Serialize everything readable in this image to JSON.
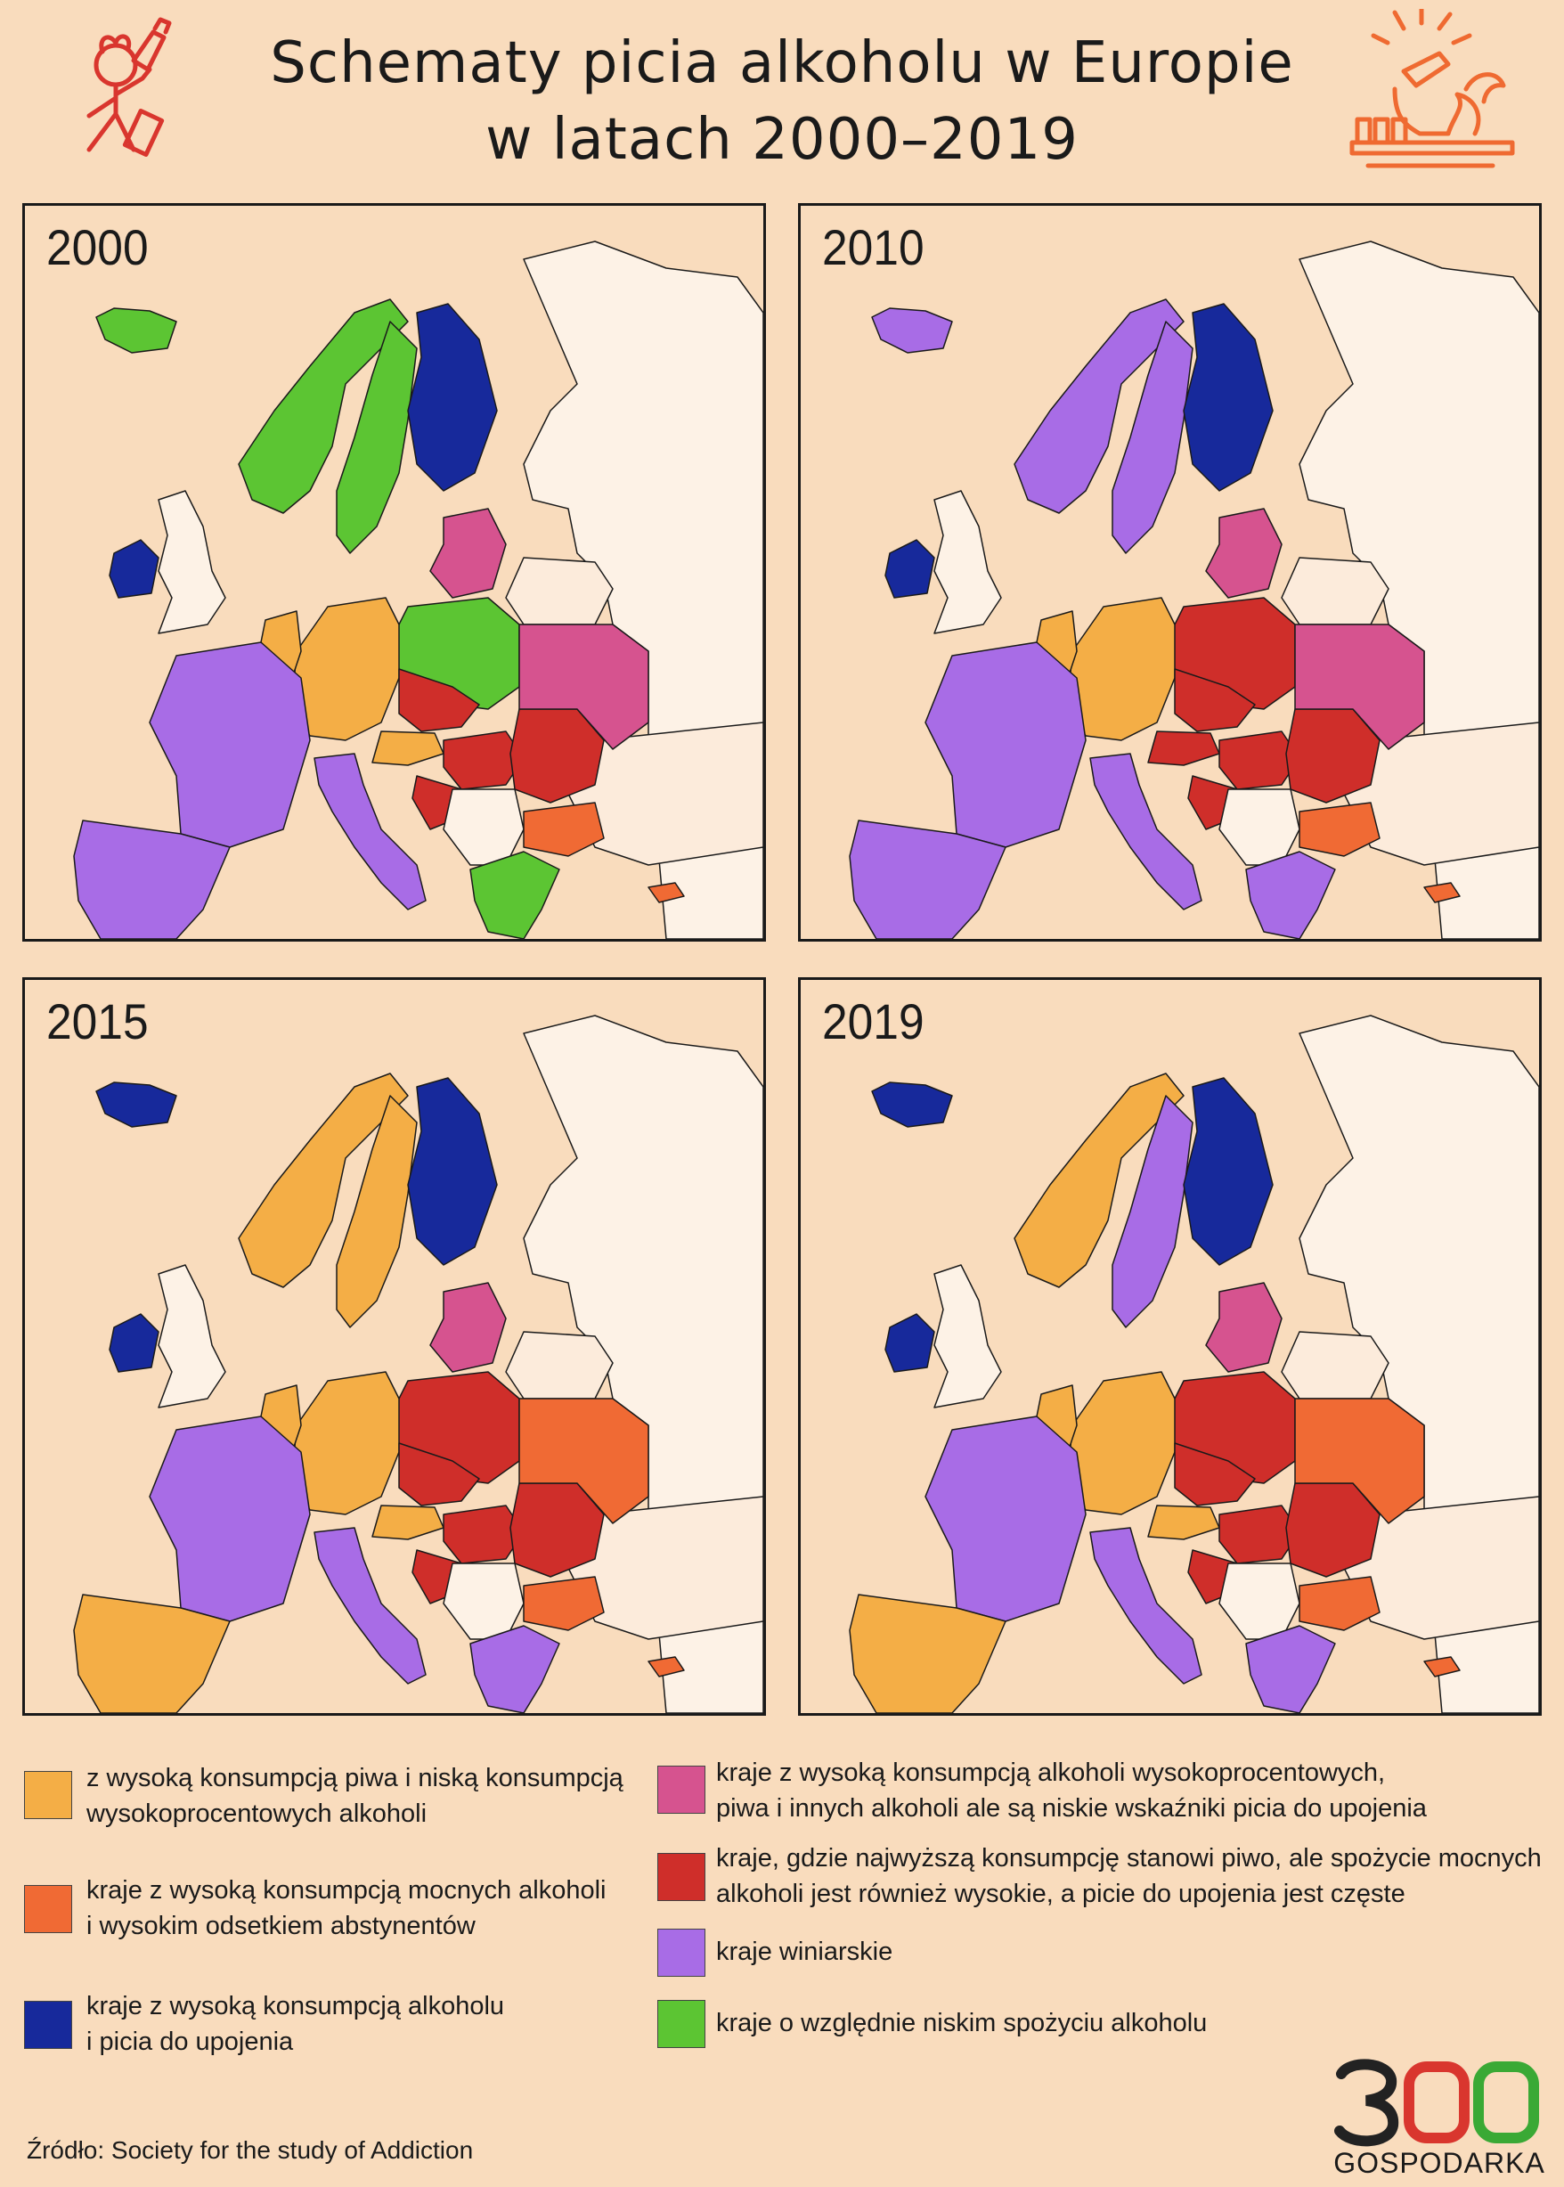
{
  "title": {
    "line1": "Schematy picia alkoholu w Europie",
    "line2": "w latach 2000–2019"
  },
  "colors": {
    "background": "#f9dcbd",
    "non_eu": "#fcebdb",
    "no_data": "#fdf2e6",
    "beer": "#f4ae46",
    "strong_abstain": "#f06a34",
    "binge": "#17299b",
    "spirits_mixed": "#d6538f",
    "beer_strong": "#cf2e2a",
    "wine": "#a86ce6",
    "low": "#5cc533"
  },
  "maps": [
    {
      "year": "2000",
      "countries": {
        "iceland": "low",
        "ireland": "binge",
        "uk": "no_data",
        "norway": "low",
        "sweden": "low",
        "finland": "binge",
        "baltics": "spirits_mixed",
        "poland": "low",
        "germany": "beer",
        "benelux": "beer",
        "france": "wine",
        "iberia": "wine",
        "italy": "wine",
        "czech": "beer_strong",
        "austria": "beer",
        "hungary": "beer_strong",
        "romania": "beer_strong",
        "bulgaria": "strong_abstain",
        "greece": "low",
        "ukraine": "spirits_mixed",
        "belarus": "non_eu",
        "cyprus": "strong_abstain",
        "balkans": "no_data",
        "croatia": "beer_strong",
        "russia": "no_data",
        "turkey": "non_eu"
      }
    },
    {
      "year": "2010",
      "countries": {
        "iceland": "wine",
        "ireland": "binge",
        "uk": "no_data",
        "norway": "wine",
        "sweden": "wine",
        "finland": "binge",
        "baltics": "spirits_mixed",
        "poland": "beer_strong",
        "germany": "beer",
        "benelux": "beer",
        "france": "wine",
        "iberia": "wine",
        "italy": "wine",
        "czech": "beer_strong",
        "austria": "beer_strong",
        "hungary": "beer_strong",
        "romania": "beer_strong",
        "bulgaria": "strong_abstain",
        "greece": "wine",
        "ukraine": "spirits_mixed",
        "belarus": "non_eu",
        "cyprus": "strong_abstain",
        "balkans": "no_data",
        "croatia": "beer_strong",
        "russia": "no_data",
        "turkey": "non_eu"
      }
    },
    {
      "year": "2015",
      "countries": {
        "iceland": "binge",
        "ireland": "binge",
        "uk": "no_data",
        "norway": "beer",
        "sweden": "beer",
        "finland": "binge",
        "baltics": "spirits_mixed",
        "poland": "beer_strong",
        "germany": "beer",
        "benelux": "beer",
        "france": "wine",
        "iberia": "beer",
        "italy": "wine",
        "czech": "beer_strong",
        "austria": "beer",
        "hungary": "beer_strong",
        "romania": "beer_strong",
        "bulgaria": "strong_abstain",
        "greece": "wine",
        "ukraine": "strong_abstain",
        "belarus": "non_eu",
        "cyprus": "strong_abstain",
        "balkans": "no_data",
        "croatia": "beer_strong",
        "russia": "no_data",
        "turkey": "non_eu"
      }
    },
    {
      "year": "2019",
      "countries": {
        "iceland": "binge",
        "ireland": "binge",
        "uk": "no_data",
        "norway": "beer",
        "sweden": "wine",
        "finland": "binge",
        "baltics": "spirits_mixed",
        "poland": "beer_strong",
        "germany": "beer",
        "benelux": "beer",
        "france": "wine",
        "iberia": "beer",
        "italy": "wine",
        "czech": "beer_strong",
        "austria": "beer",
        "hungary": "beer_strong",
        "romania": "beer_strong",
        "bulgaria": "strong_abstain",
        "greece": "wine",
        "ukraine": "strong_abstain",
        "belarus": "non_eu",
        "cyprus": "strong_abstain",
        "balkans": "no_data",
        "croatia": "beer_strong",
        "russia": "no_data",
        "turkey": "non_eu"
      }
    }
  ],
  "legend": [
    {
      "key": "beer",
      "line1": "z wysoką konsumpcją piwa i niską konsumpcją",
      "line2": "wysokoprocentowych alkoholi"
    },
    {
      "key": "strong_abstain",
      "line1": "kraje z wysoką konsumpcją mocnych alkoholi",
      "line2": "i wysokim odsetkiem abstynentów"
    },
    {
      "key": "binge",
      "line1": "kraje z wysoką konsumpcją alkoholu",
      "line2": "i picia do upojenia"
    },
    {
      "key": "spirits_mixed",
      "line1": "kraje z wysoką konsumpcją alkoholi wysokoprocentowych,",
      "line2": "piwa i innych alkoholi ale są niskie wskaźniki picia do upojenia"
    },
    {
      "key": "beer_strong",
      "line1": "kraje, gdzie najwyższą konsumpcję stanowi piwo, ale spożycie mocnych",
      "line2": "alkoholi jest również wysokie, a picie do upojenia jest częste"
    },
    {
      "key": "wine",
      "line1": "kraje winiarskie",
      "line2": ""
    },
    {
      "key": "low",
      "line1": "kraje o względnie niskim spożyciu alkoholu",
      "line2": ""
    }
  ],
  "source": "Źródło: Society for the study of Addiction",
  "logo": {
    "number": "300",
    "sub": "GOSPODARKA"
  }
}
